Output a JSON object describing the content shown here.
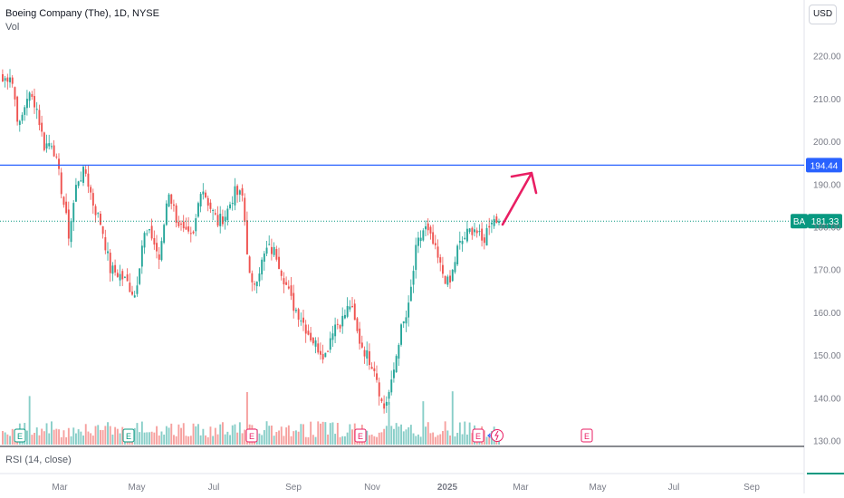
{
  "header": {
    "title": "Boeing Company (The), 1D, NYSE",
    "vol_label": "Vol",
    "currency": "USD"
  },
  "rsi_label": "RSI (14, close)",
  "colors": {
    "up": "#26a69a",
    "down": "#ef5350",
    "level_line": "#2962ff",
    "arrow": "#e91e63",
    "last_price": "#089981"
  },
  "chart_data": {
    "type": "candlestick",
    "symbol": "BA",
    "ylim": [
      130,
      220
    ],
    "y_ticks": [
      "220.00",
      "210.00",
      "200.00",
      "190.00",
      "180.00",
      "170.00",
      "160.00",
      "150.00",
      "140.00",
      "130.00"
    ],
    "x_ticks": [
      "Mar",
      "May",
      "Jul",
      "Sep",
      "Nov",
      "2025",
      "Mar",
      "May",
      "Jul",
      "Sep"
    ],
    "horizontal_level": {
      "value": 194.44,
      "label": "194.44"
    },
    "last_price": {
      "value": 181.33,
      "label": "181.33",
      "symbol_label": "BA"
    },
    "price_path": [
      214,
      216,
      203,
      211,
      209,
      199,
      200,
      190,
      178,
      191,
      193,
      185,
      180,
      170,
      169,
      167,
      164,
      178,
      178,
      172,
      189,
      182,
      178,
      177,
      190,
      185,
      181,
      183,
      188,
      187,
      165,
      170,
      175,
      174,
      168,
      162,
      159,
      155,
      152,
      150,
      157,
      158,
      162,
      154,
      150,
      147,
      137,
      143,
      155,
      160,
      175,
      180,
      176,
      170,
      166,
      175,
      178,
      180,
      176,
      182,
      181.33
    ],
    "earnings_markers": [
      "E",
      "E",
      "E",
      "E",
      "E",
      "E"
    ],
    "annotation": "upward arrow"
  }
}
